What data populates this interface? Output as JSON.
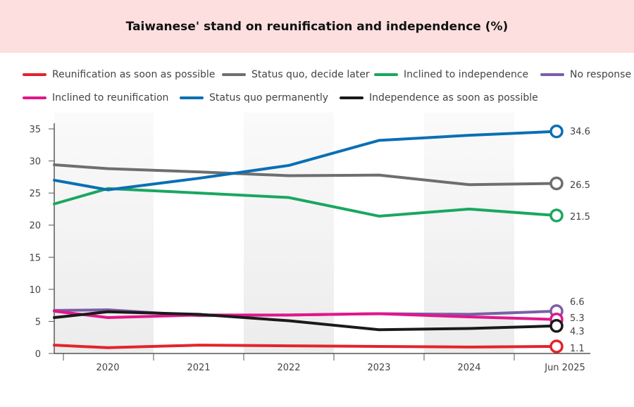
{
  "chart_data": {
    "type": "line",
    "title": "Taiwanese' stand on reunification and independence (%)",
    "xlabel": "",
    "ylabel": "",
    "categories": [
      "",
      "2020",
      "2021",
      "2022",
      "2023",
      "2024",
      "Jun 2025"
    ],
    "ylim": [
      0,
      35
    ],
    "yticks": [
      0,
      5,
      10,
      15,
      20,
      25,
      30,
      35
    ],
    "grid": false,
    "legend_position": "top",
    "series": [
      {
        "name": "Reunification as soon as possible",
        "color": "#e3232b",
        "values": [
          1.3,
          0.9,
          1.3,
          1.2,
          1.1,
          1.0,
          1.1
        ],
        "end_label": "1.1"
      },
      {
        "name": "Status quo, decide later",
        "color": "#6d6e70",
        "values": [
          29.4,
          28.8,
          28.3,
          27.7,
          27.8,
          26.3,
          26.5
        ],
        "end_label": "26.5"
      },
      {
        "name": "Inclined to independence",
        "color": "#1aa760",
        "values": [
          23.3,
          25.7,
          25.0,
          24.3,
          21.4,
          22.5,
          21.5
        ],
        "end_label": "21.5"
      },
      {
        "name": "No response",
        "color": "#7b5ea7",
        "values": [
          6.7,
          6.8,
          5.9,
          6.0,
          6.2,
          6.1,
          6.6
        ],
        "end_label": "6.6"
      },
      {
        "name": "Inclined to reunification",
        "color": "#e2168b",
        "values": [
          6.6,
          5.6,
          6.0,
          6.0,
          6.2,
          5.7,
          5.3
        ],
        "end_label": "5.3"
      },
      {
        "name": "Status quo permanently",
        "color": "#0a6fb4",
        "values": [
          27.0,
          25.5,
          27.3,
          29.3,
          33.2,
          34.0,
          34.6
        ],
        "end_label": "34.6"
      },
      {
        "name": "Independence as soon as possible",
        "color": "#1a1a1a",
        "values": [
          5.6,
          6.5,
          6.1,
          5.1,
          3.7,
          3.9,
          4.3
        ],
        "end_label": "4.3"
      }
    ]
  }
}
